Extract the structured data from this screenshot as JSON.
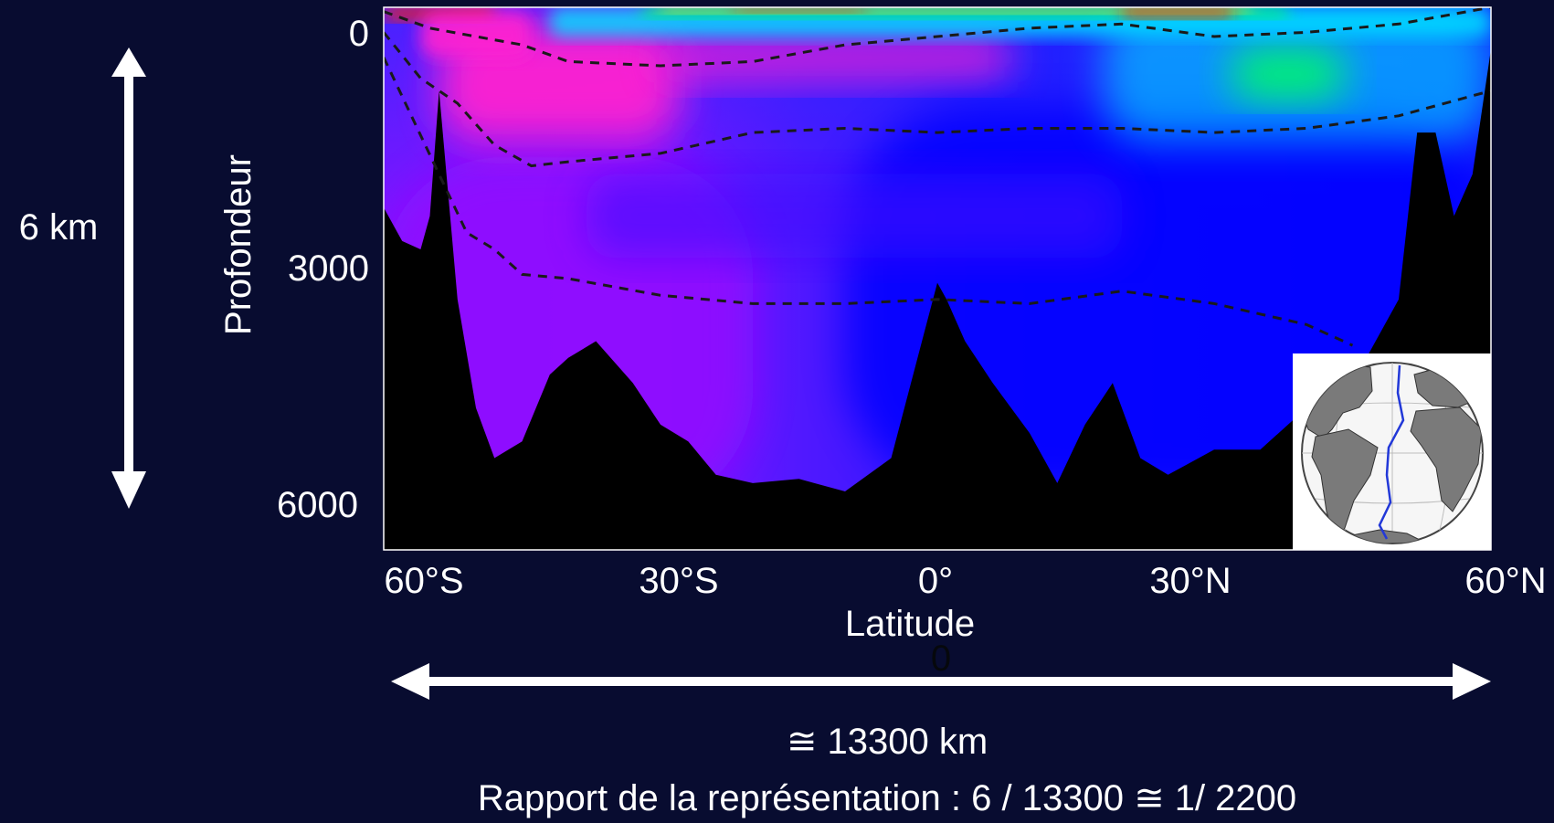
{
  "chart_data": {
    "type": "heatmap",
    "title": "",
    "xlabel": "Latitude",
    "ylabel": "Profondeur",
    "x_ticks": [
      "60°S",
      "30°S",
      "0°",
      "30°N",
      "60°N"
    ],
    "y_ticks": [
      "0",
      "3000",
      "6000"
    ],
    "xlim_deg": [
      -60,
      60
    ],
    "ylim_m": [
      0,
      6500
    ],
    "y_inverted": true,
    "contours_dashed": [
      {
        "lat": [
          -60,
          -55,
          -50,
          -45,
          -40,
          -30,
          -20,
          -10,
          0,
          10,
          20,
          30,
          40,
          50,
          60
        ],
        "depth": [
          50,
          250,
          350,
          450,
          650,
          700,
          650,
          450,
          350,
          250,
          200,
          350,
          300,
          200,
          0
        ]
      },
      {
        "lat": [
          -60,
          -56,
          -52,
          -48,
          -44,
          -40,
          -30,
          -20,
          -10,
          0,
          10,
          20,
          30,
          40,
          50,
          60
        ],
        "depth": [
          300,
          850,
          1150,
          1650,
          1900,
          1850,
          1750,
          1500,
          1450,
          1500,
          1450,
          1450,
          1500,
          1450,
          1300,
          1000
        ]
      },
      {
        "lat": [
          -60,
          -57,
          -54,
          -51,
          -48,
          -45,
          -40,
          -30,
          -20,
          -10,
          0,
          10,
          20,
          30,
          40,
          45
        ],
        "depth": [
          600,
          1300,
          2000,
          2700,
          2900,
          3200,
          3250,
          3450,
          3550,
          3550,
          3500,
          3550,
          3400,
          3550,
          3800,
          4050
        ]
      }
    ],
    "bathymetry_depth_m": {
      "lat": [
        -60,
        -58,
        -56,
        -55,
        -54,
        -52,
        -50,
        -48,
        -45,
        -42,
        -40,
        -37,
        -33,
        -30,
        -27,
        -24,
        -20,
        -15,
        -10,
        -5,
        0,
        1,
        3,
        6,
        10,
        13,
        16,
        19,
        22,
        25,
        30,
        35,
        40,
        45,
        50,
        52,
        54,
        56,
        58,
        60
      ],
      "depth": [
        2400,
        2800,
        2900,
        2500,
        1000,
        3500,
        4800,
        5400,
        5200,
        4400,
        4200,
        4000,
        4500,
        5000,
        5200,
        5600,
        5700,
        5650,
        5800,
        5400,
        3300,
        3500,
        4000,
        4500,
        5100,
        5700,
        5000,
        4500,
        5400,
        5600,
        5300,
        5300,
        4800,
        4500,
        3500,
        1500,
        1500,
        2500,
        2000,
        500
      ]
    },
    "colormap": [
      "#0000ff",
      "#4010ff",
      "#9010ff",
      "#ff20d0",
      "#00e0ff",
      "#00ff60",
      "#ffff00",
      "#ff2000"
    ],
    "legend": "none",
    "grid": false
  },
  "annotations": {
    "vertical_extent_label": "6 km",
    "horizontal_extent_label": "≅ 13300 km",
    "ratio_label": "Rapport de la représentation : 6 / 13300  ≅ 1/ 2200",
    "stray_zero": "0"
  },
  "inset": {
    "type": "globe-map",
    "section_line_color": "#2238d8"
  },
  "colors": {
    "background": "#080c30",
    "text": "#ffffff",
    "seafloor": "#000000",
    "contour": "#1a1a1a"
  }
}
